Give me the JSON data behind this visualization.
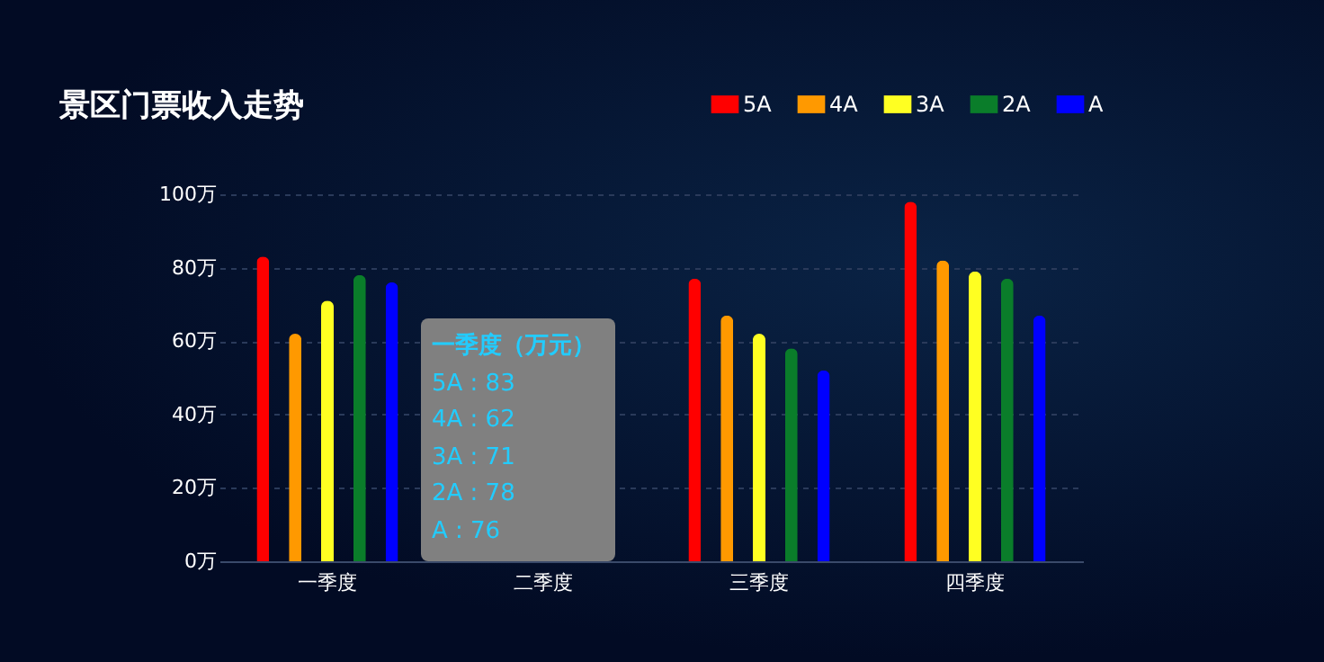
{
  "chart_data": {
    "type": "bar",
    "title": "景区门票收入走势",
    "categories": [
      "一季度",
      "二季度",
      "三季度",
      "四季度"
    ],
    "series": [
      {
        "name": "5A",
        "color": "#ff0000",
        "values": [
          83,
          null,
          77,
          98
        ]
      },
      {
        "name": "4A",
        "color": "#ff9900",
        "values": [
          62,
          null,
          67,
          82
        ]
      },
      {
        "name": "3A",
        "color": "#ffff22",
        "values": [
          71,
          null,
          62,
          79
        ]
      },
      {
        "name": "2A",
        "color": "#0a7d2a",
        "values": [
          78,
          null,
          58,
          77
        ]
      },
      {
        "name": "A",
        "color": "#0000ff",
        "values": [
          76,
          null,
          52,
          67
        ]
      }
    ],
    "ylim": [
      0,
      100
    ],
    "yticks": [
      {
        "value": 0,
        "label": "0万"
      },
      {
        "value": 20,
        "label": "20万"
      },
      {
        "value": 40,
        "label": "40万"
      },
      {
        "value": 60,
        "label": "60万"
      },
      {
        "value": 80,
        "label": "80万"
      },
      {
        "value": 100,
        "label": "100万"
      }
    ],
    "grid": "y",
    "legend": "top right",
    "annotations": [
      "一季度（万元）",
      "5A : 83",
      "4A : 62",
      "3A : 71",
      "2A : 78",
      "A : 76"
    ]
  }
}
